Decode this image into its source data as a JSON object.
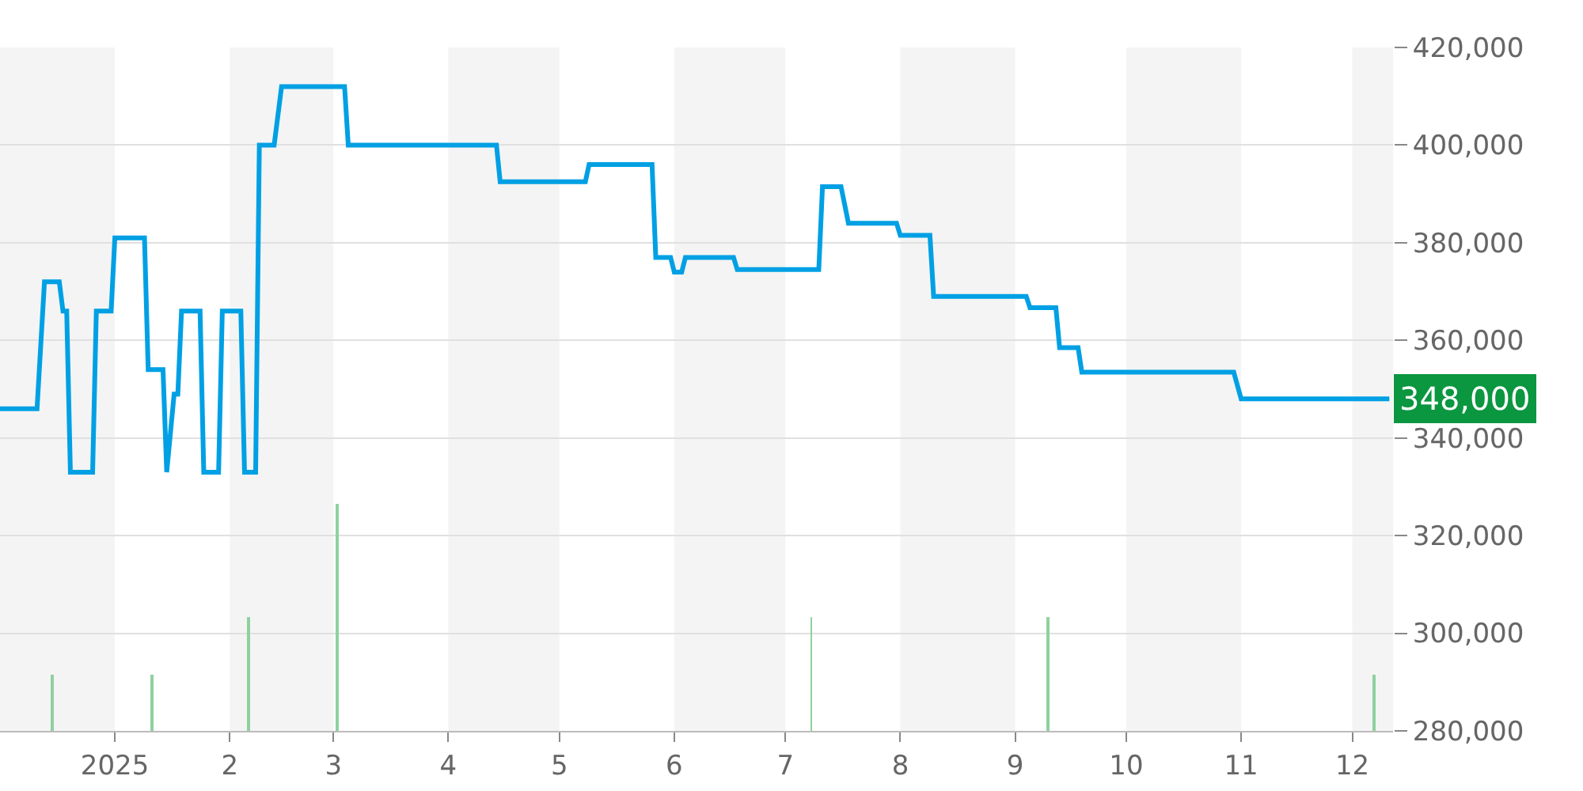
{
  "chart_data": {
    "type": "line",
    "series": [
      {
        "color": "#00a0e4",
        "x": [
          "2024-12-01",
          "2024-12-11",
          "2024-12-13",
          "2024-12-17",
          "2024-12-18",
          "2024-12-19",
          "2024-12-20",
          "2024-12-26",
          "2024-12-27",
          "2024-12-31",
          "2025-01-01",
          "2025-01-09",
          "2025-01-10",
          "2025-01-14",
          "2025-01-15",
          "2025-01-17",
          "2025-01-18",
          "2025-01-19",
          "2025-01-24",
          "2025-01-25",
          "2025-01-29",
          "2025-01-30",
          "2025-02-04",
          "2025-02-05",
          "2025-02-08",
          "2025-02-09",
          "2025-02-13",
          "2025-02-15",
          "2025-03-04",
          "2025-03-05",
          "2025-04-14",
          "2025-04-15",
          "2025-05-08",
          "2025-05-09",
          "2025-05-26",
          "2025-05-27",
          "2025-05-31",
          "2025-06-01",
          "2025-06-03",
          "2025-06-04",
          "2025-06-17",
          "2025-06-18",
          "2025-07-10",
          "2025-07-11",
          "2025-07-16",
          "2025-07-18",
          "2025-07-31",
          "2025-08-01",
          "2025-08-09",
          "2025-08-10",
          "2025-09-04",
          "2025-09-05",
          "2025-09-12",
          "2025-09-13",
          "2025-09-18",
          "2025-09-19",
          "2025-10-30",
          "2025-11-01",
          "2025-12-10",
          "2025-12-11"
        ],
        "values": [
          346000,
          346000,
          372000,
          372000,
          366000,
          366000,
          333000,
          333000,
          366000,
          366000,
          381000,
          381000,
          354000,
          354000,
          333000,
          349000,
          349000,
          366000,
          366000,
          333000,
          333000,
          366000,
          366000,
          333000,
          333000,
          400000,
          400000,
          412000,
          412000,
          400000,
          400000,
          392500,
          392500,
          396000,
          396000,
          377000,
          377000,
          374000,
          374000,
          377000,
          377000,
          374500,
          374500,
          391500,
          391500,
          384000,
          384000,
          381500,
          381500,
          369000,
          369000,
          366700,
          366700,
          358500,
          358500,
          353500,
          353500,
          348000,
          348000,
          348000
        ]
      },
      {
        "type": "bar",
        "color": "#8fd19e",
        "x": [
          "2024-12-15",
          "2025-01-11",
          "2025-02-06",
          "2025-03-02",
          "2025-07-08",
          "2025-09-10",
          "2025-12-07"
        ],
        "base": [
          280000,
          280000,
          280000,
          280000,
          280000,
          280000,
          280000
        ],
        "values": [
          11500,
          11500,
          23300,
          46500,
          23300,
          23300,
          11500
        ]
      }
    ],
    "xlim": [
      "2024-12-01",
      "2025-12-12"
    ],
    "xticks": [
      {
        "value": "2025-01-01",
        "label": "2025"
      },
      {
        "value": "2025-02-01",
        "label": "2"
      },
      {
        "value": "2025-03-01",
        "label": "3"
      },
      {
        "value": "2025-04-01",
        "label": "4"
      },
      {
        "value": "2025-05-01",
        "label": "5"
      },
      {
        "value": "2025-06-01",
        "label": "6"
      },
      {
        "value": "2025-07-01",
        "label": "7"
      },
      {
        "value": "2025-08-01",
        "label": "8"
      },
      {
        "value": "2025-09-01",
        "label": "9"
      },
      {
        "value": "2025-10-01",
        "label": "10"
      },
      {
        "value": "2025-11-01",
        "label": "11"
      },
      {
        "value": "2025-12-01",
        "label": "12"
      }
    ],
    "ylim": [
      280000,
      420000
    ],
    "yticks": [
      {
        "value": 280000,
        "label": "280,000"
      },
      {
        "value": 300000,
        "label": "300,000"
      },
      {
        "value": 320000,
        "label": "320,000"
      },
      {
        "value": 340000,
        "label": "340,000"
      },
      {
        "value": 360000,
        "label": "360,000"
      },
      {
        "value": 380000,
        "label": "380,000"
      },
      {
        "value": 400000,
        "label": "400,000"
      },
      {
        "value": 420000,
        "label": "420,000"
      }
    ],
    "grid": "y",
    "bands": [
      {
        "axis": "x",
        "from": "2024-12-01",
        "to": "2025-01-01",
        "color": "#f4f4f4"
      },
      {
        "axis": "x",
        "from": "2025-02-01",
        "to": "2025-03-01",
        "color": "#f4f4f4"
      },
      {
        "axis": "x",
        "from": "2025-04-01",
        "to": "2025-05-01",
        "color": "#f4f4f4"
      },
      {
        "axis": "x",
        "from": "2025-06-01",
        "to": "2025-07-01",
        "color": "#f4f4f4"
      },
      {
        "axis": "x",
        "from": "2025-08-01",
        "to": "2025-09-01",
        "color": "#f4f4f4"
      },
      {
        "axis": "x",
        "from": "2025-10-01",
        "to": "2025-11-01",
        "color": "#f4f4f4"
      },
      {
        "axis": "x",
        "from": "2025-12-01",
        "to": "2025-12-12",
        "color": "#f4f4f4"
      }
    ],
    "annotations": [
      {
        "text": "348,000",
        "x": "2025-12-11",
        "y": 348000
      }
    ]
  }
}
